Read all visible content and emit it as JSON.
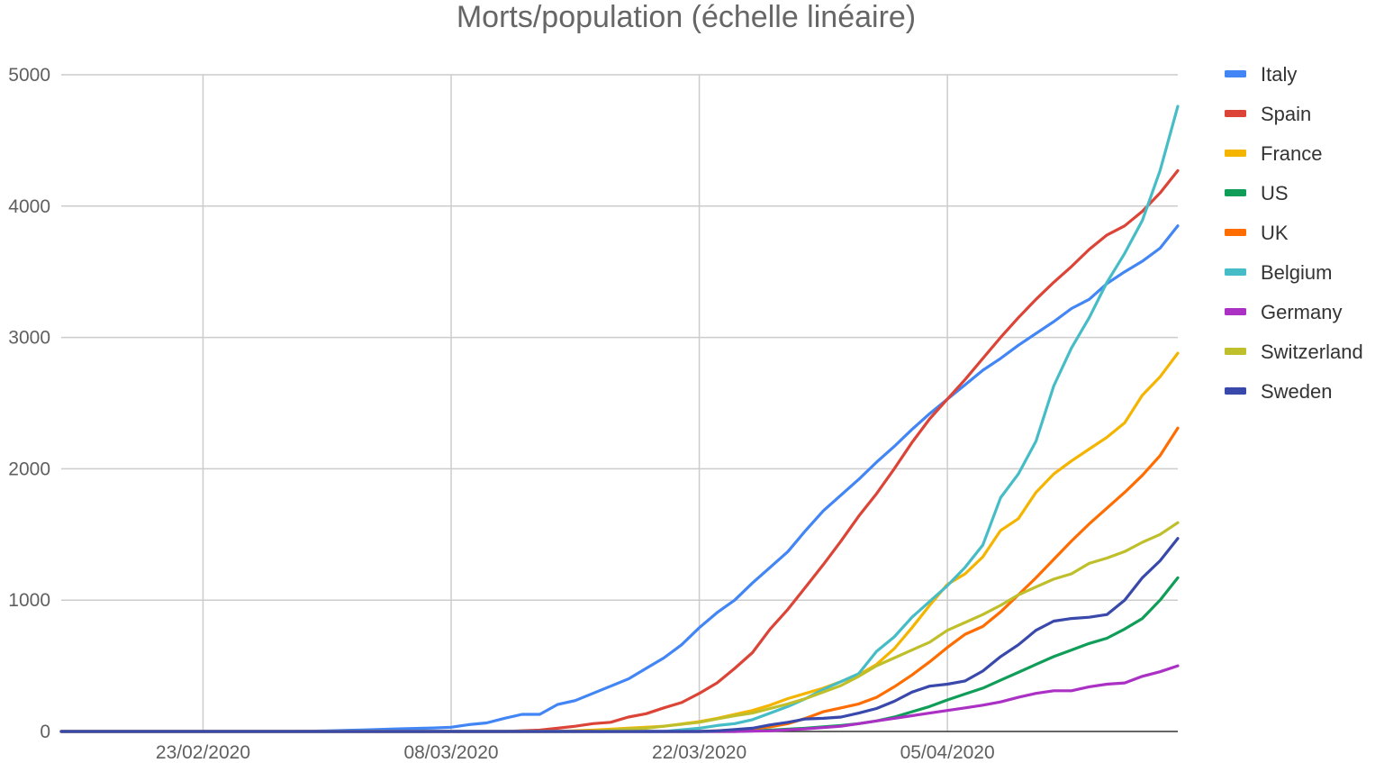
{
  "chart_data": {
    "type": "line",
    "title": "Morts/population (échelle linéaire)",
    "xlabel": "",
    "ylabel": "",
    "x_ticks": [
      "23/02/2020",
      "08/03/2020",
      "22/03/2020",
      "05/04/2020"
    ],
    "y_ticks": [
      "0",
      "1000",
      "2000",
      "3000",
      "4000",
      "5000"
    ],
    "ylim": [
      0,
      5000
    ],
    "x_range_days": [
      0,
      63
    ],
    "x_tick_days": [
      8,
      22,
      36,
      50
    ],
    "x_start_date": "15/02/2020",
    "grid": true,
    "legend_position": "right",
    "series": [
      {
        "name": "Italy",
        "color": "#4285f4",
        "points": [
          [
            0,
            0
          ],
          [
            13,
            0
          ],
          [
            15,
            5
          ],
          [
            17,
            12
          ],
          [
            19,
            20
          ],
          [
            21,
            27
          ],
          [
            22,
            32
          ],
          [
            23,
            52
          ],
          [
            24,
            65
          ],
          [
            25,
            100
          ],
          [
            26,
            130
          ],
          [
            27,
            130
          ],
          [
            28,
            205
          ],
          [
            29,
            235
          ],
          [
            30,
            290
          ],
          [
            31,
            345
          ],
          [
            32,
            400
          ],
          [
            33,
            480
          ],
          [
            34,
            560
          ],
          [
            35,
            660
          ],
          [
            36,
            790
          ],
          [
            37,
            905
          ],
          [
            38,
            1000
          ],
          [
            39,
            1130
          ],
          [
            40,
            1250
          ],
          [
            41,
            1370
          ],
          [
            42,
            1530
          ],
          [
            43,
            1680
          ],
          [
            44,
            1800
          ],
          [
            45,
            1920
          ],
          [
            46,
            2050
          ],
          [
            47,
            2170
          ],
          [
            48,
            2300
          ],
          [
            49,
            2420
          ],
          [
            50,
            2530
          ],
          [
            51,
            2640
          ],
          [
            52,
            2750
          ],
          [
            53,
            2840
          ],
          [
            54,
            2940
          ],
          [
            55,
            3030
          ],
          [
            56,
            3120
          ],
          [
            57,
            3220
          ],
          [
            58,
            3290
          ],
          [
            59,
            3410
          ],
          [
            60,
            3500
          ],
          [
            61,
            3580
          ],
          [
            62,
            3680
          ],
          [
            63,
            3850
          ]
        ]
      },
      {
        "name": "Spain",
        "color": "#db4437",
        "points": [
          [
            0,
            0
          ],
          [
            25,
            0
          ],
          [
            27,
            10
          ],
          [
            28,
            25
          ],
          [
            29,
            40
          ],
          [
            30,
            60
          ],
          [
            31,
            70
          ],
          [
            32,
            110
          ],
          [
            33,
            135
          ],
          [
            34,
            180
          ],
          [
            35,
            220
          ],
          [
            36,
            290
          ],
          [
            37,
            370
          ],
          [
            38,
            480
          ],
          [
            39,
            600
          ],
          [
            40,
            780
          ],
          [
            41,
            930
          ],
          [
            42,
            1100
          ],
          [
            43,
            1270
          ],
          [
            44,
            1450
          ],
          [
            45,
            1640
          ],
          [
            46,
            1810
          ],
          [
            47,
            2000
          ],
          [
            48,
            2200
          ],
          [
            49,
            2380
          ],
          [
            50,
            2530
          ],
          [
            51,
            2680
          ],
          [
            52,
            2840
          ],
          [
            53,
            3000
          ],
          [
            54,
            3150
          ],
          [
            55,
            3290
          ],
          [
            56,
            3420
          ],
          [
            57,
            3540
          ],
          [
            58,
            3670
          ],
          [
            59,
            3780
          ],
          [
            60,
            3850
          ],
          [
            61,
            3960
          ],
          [
            62,
            4100
          ],
          [
            63,
            4270
          ]
        ]
      },
      {
        "name": "France",
        "color": "#f4b400",
        "points": [
          [
            0,
            0
          ],
          [
            28,
            0
          ],
          [
            30,
            10
          ],
          [
            32,
            25
          ],
          [
            34,
            40
          ],
          [
            36,
            75
          ],
          [
            37,
            100
          ],
          [
            38,
            130
          ],
          [
            39,
            160
          ],
          [
            40,
            200
          ],
          [
            41,
            250
          ],
          [
            42,
            290
          ],
          [
            43,
            330
          ],
          [
            44,
            380
          ],
          [
            45,
            430
          ],
          [
            46,
            510
          ],
          [
            47,
            630
          ],
          [
            48,
            790
          ],
          [
            49,
            960
          ],
          [
            50,
            1120
          ],
          [
            51,
            1200
          ],
          [
            52,
            1330
          ],
          [
            53,
            1530
          ],
          [
            54,
            1620
          ],
          [
            55,
            1820
          ],
          [
            56,
            1960
          ],
          [
            57,
            2060
          ],
          [
            58,
            2150
          ],
          [
            59,
            2240
          ],
          [
            60,
            2350
          ],
          [
            61,
            2560
          ],
          [
            62,
            2700
          ],
          [
            63,
            2880
          ]
        ]
      },
      {
        "name": "US",
        "color": "#0f9d58",
        "points": [
          [
            0,
            0
          ],
          [
            38,
            0
          ],
          [
            40,
            10
          ],
          [
            42,
            25
          ],
          [
            44,
            45
          ],
          [
            45,
            60
          ],
          [
            46,
            80
          ],
          [
            47,
            110
          ],
          [
            48,
            150
          ],
          [
            49,
            190
          ],
          [
            50,
            240
          ],
          [
            51,
            285
          ],
          [
            52,
            330
          ],
          [
            53,
            390
          ],
          [
            54,
            450
          ],
          [
            55,
            510
          ],
          [
            56,
            570
          ],
          [
            57,
            620
          ],
          [
            58,
            670
          ],
          [
            59,
            710
          ],
          [
            60,
            780
          ],
          [
            61,
            860
          ],
          [
            62,
            1000
          ],
          [
            63,
            1170
          ]
        ]
      },
      {
        "name": "UK",
        "color": "#ff6d01",
        "points": [
          [
            0,
            0
          ],
          [
            36,
            0
          ],
          [
            38,
            10
          ],
          [
            40,
            35
          ],
          [
            41,
            60
          ],
          [
            42,
            100
          ],
          [
            43,
            150
          ],
          [
            44,
            180
          ],
          [
            45,
            210
          ],
          [
            46,
            260
          ],
          [
            47,
            340
          ],
          [
            48,
            430
          ],
          [
            49,
            530
          ],
          [
            50,
            640
          ],
          [
            51,
            740
          ],
          [
            52,
            800
          ],
          [
            53,
            910
          ],
          [
            54,
            1040
          ],
          [
            55,
            1170
          ],
          [
            56,
            1310
          ],
          [
            57,
            1450
          ],
          [
            58,
            1580
          ],
          [
            59,
            1700
          ],
          [
            60,
            1820
          ],
          [
            61,
            1950
          ],
          [
            62,
            2100
          ],
          [
            63,
            2310
          ]
        ]
      },
      {
        "name": "Belgium",
        "color": "#46bdc6",
        "points": [
          [
            0,
            0
          ],
          [
            34,
            0
          ],
          [
            36,
            25
          ],
          [
            37,
            45
          ],
          [
            38,
            60
          ],
          [
            39,
            90
          ],
          [
            40,
            140
          ],
          [
            41,
            190
          ],
          [
            42,
            250
          ],
          [
            43,
            320
          ],
          [
            44,
            380
          ],
          [
            45,
            440
          ],
          [
            46,
            610
          ],
          [
            47,
            720
          ],
          [
            48,
            870
          ],
          [
            49,
            990
          ],
          [
            50,
            1110
          ],
          [
            51,
            1250
          ],
          [
            52,
            1420
          ],
          [
            53,
            1780
          ],
          [
            54,
            1960
          ],
          [
            55,
            2210
          ],
          [
            56,
            2630
          ],
          [
            57,
            2920
          ],
          [
            58,
            3150
          ],
          [
            59,
            3420
          ],
          [
            60,
            3640
          ],
          [
            61,
            3890
          ],
          [
            62,
            4270
          ],
          [
            63,
            4760
          ]
        ]
      },
      {
        "name": "Germany",
        "color": "#ab30c4",
        "points": [
          [
            0,
            0
          ],
          [
            38,
            0
          ],
          [
            40,
            5
          ],
          [
            42,
            20
          ],
          [
            44,
            40
          ],
          [
            45,
            60
          ],
          [
            46,
            80
          ],
          [
            47,
            100
          ],
          [
            48,
            120
          ],
          [
            49,
            140
          ],
          [
            50,
            160
          ],
          [
            51,
            180
          ],
          [
            52,
            200
          ],
          [
            53,
            225
          ],
          [
            54,
            260
          ],
          [
            55,
            290
          ],
          [
            56,
            310
          ],
          [
            57,
            310
          ],
          [
            58,
            340
          ],
          [
            59,
            360
          ],
          [
            60,
            370
          ],
          [
            61,
            420
          ],
          [
            62,
            455
          ],
          [
            63,
            500
          ]
        ]
      },
      {
        "name": "Switzerland",
        "color": "#bfbf2b",
        "points": [
          [
            0,
            0
          ],
          [
            30,
            0
          ],
          [
            31,
            10
          ],
          [
            32,
            20
          ],
          [
            33,
            25
          ],
          [
            34,
            40
          ],
          [
            35,
            55
          ],
          [
            36,
            70
          ],
          [
            37,
            95
          ],
          [
            38,
            120
          ],
          [
            39,
            140
          ],
          [
            40,
            175
          ],
          [
            41,
            210
          ],
          [
            42,
            250
          ],
          [
            43,
            300
          ],
          [
            44,
            350
          ],
          [
            45,
            420
          ],
          [
            46,
            500
          ],
          [
            47,
            560
          ],
          [
            48,
            620
          ],
          [
            49,
            680
          ],
          [
            50,
            770
          ],
          [
            51,
            830
          ],
          [
            52,
            890
          ],
          [
            53,
            960
          ],
          [
            54,
            1040
          ],
          [
            55,
            1100
          ],
          [
            56,
            1160
          ],
          [
            57,
            1200
          ],
          [
            58,
            1280
          ],
          [
            59,
            1320
          ],
          [
            60,
            1370
          ],
          [
            61,
            1440
          ],
          [
            62,
            1500
          ],
          [
            63,
            1590
          ]
        ]
      },
      {
        "name": "Sweden",
        "color": "#3949ab",
        "points": [
          [
            0,
            0
          ],
          [
            36,
            0
          ],
          [
            37,
            5
          ],
          [
            38,
            15
          ],
          [
            39,
            25
          ],
          [
            40,
            50
          ],
          [
            41,
            70
          ],
          [
            42,
            95
          ],
          [
            43,
            100
          ],
          [
            44,
            110
          ],
          [
            45,
            140
          ],
          [
            46,
            175
          ],
          [
            47,
            230
          ],
          [
            48,
            300
          ],
          [
            49,
            345
          ],
          [
            50,
            360
          ],
          [
            51,
            385
          ],
          [
            52,
            460
          ],
          [
            53,
            570
          ],
          [
            54,
            660
          ],
          [
            55,
            770
          ],
          [
            56,
            840
          ],
          [
            57,
            860
          ],
          [
            58,
            870
          ],
          [
            59,
            890
          ],
          [
            60,
            1000
          ],
          [
            61,
            1170
          ],
          [
            62,
            1300
          ],
          [
            63,
            1470
          ]
        ]
      }
    ]
  }
}
